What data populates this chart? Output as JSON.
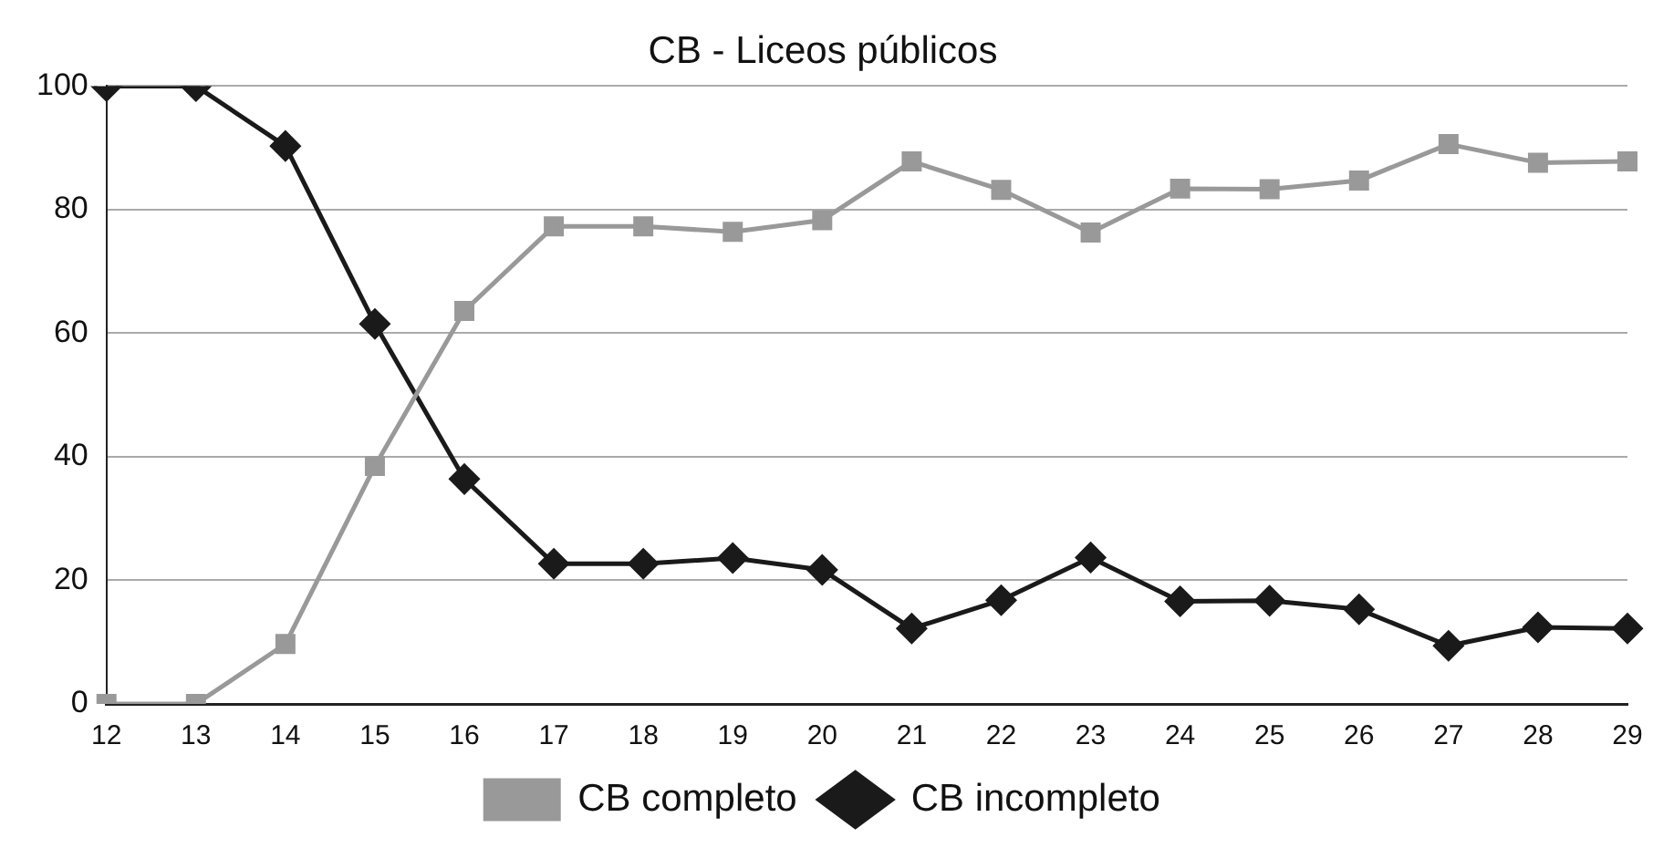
{
  "chart_data": {
    "type": "line",
    "title": "CB - Liceos públicos",
    "categories": [
      "12",
      "13",
      "14",
      "15",
      "16",
      "17",
      "18",
      "19",
      "20",
      "21",
      "22",
      "23",
      "24",
      "25",
      "26",
      "27",
      "28",
      "29"
    ],
    "series": [
      {
        "name": "CB completo",
        "color": "#999999",
        "marker": "square",
        "values": [
          0,
          0,
          9.7,
          38.5,
          63.6,
          77.3,
          77.3,
          76.4,
          78.3,
          87.8,
          83.2,
          76.3,
          83.4,
          83.3,
          84.7,
          90.6,
          87.6,
          87.8
        ]
      },
      {
        "name": "CB incompleto",
        "color": "#1a1a1a",
        "marker": "diamond",
        "values": [
          100,
          100,
          90.3,
          61.5,
          36.4,
          22.7,
          22.7,
          23.6,
          21.7,
          12.2,
          16.8,
          23.7,
          16.6,
          16.7,
          15.3,
          9.4,
          12.4,
          12.2
        ]
      }
    ],
    "ylim": [
      0,
      100
    ],
    "yticks": [
      0,
      20,
      40,
      60,
      80,
      100
    ],
    "grid": "y",
    "legend": "bottom",
    "line_style": "solid"
  }
}
